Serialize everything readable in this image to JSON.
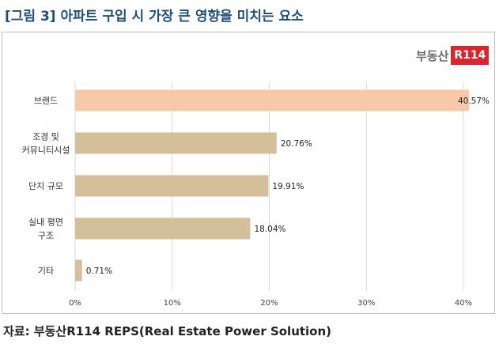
{
  "title": "[그림 3] 아파트 구입 시 가장 큰 영향을 미치는 요소",
  "logo": {
    "text": "부동산",
    "badge": "R114"
  },
  "source": "자료: 부동산R114 REPS(Real Estate Power Solution)",
  "colors": {
    "highlight": "#f8c9a9",
    "bar": "#d3c09a",
    "grid": "#d9d9d9",
    "title": "#1f4e79"
  },
  "chart_data": {
    "type": "bar",
    "orientation": "horizontal",
    "categories": [
      [
        "브랜드"
      ],
      [
        "조경 및",
        "커뮤니티시설"
      ],
      [
        "단지 규모"
      ],
      [
        "실내 평면",
        "구조"
      ],
      [
        "기타"
      ]
    ],
    "values": [
      40.57,
      20.76,
      19.91,
      18.04,
      0.71
    ],
    "data_labels": [
      "40.57%",
      "20.76%",
      "19.91%",
      "18.04%",
      "0.71%"
    ],
    "xlim": [
      0,
      40
    ],
    "xticks": [
      0,
      10,
      20,
      30,
      40
    ],
    "xtick_labels": [
      "0%",
      "10%",
      "20%",
      "30%",
      "40%"
    ],
    "grid": true
  }
}
